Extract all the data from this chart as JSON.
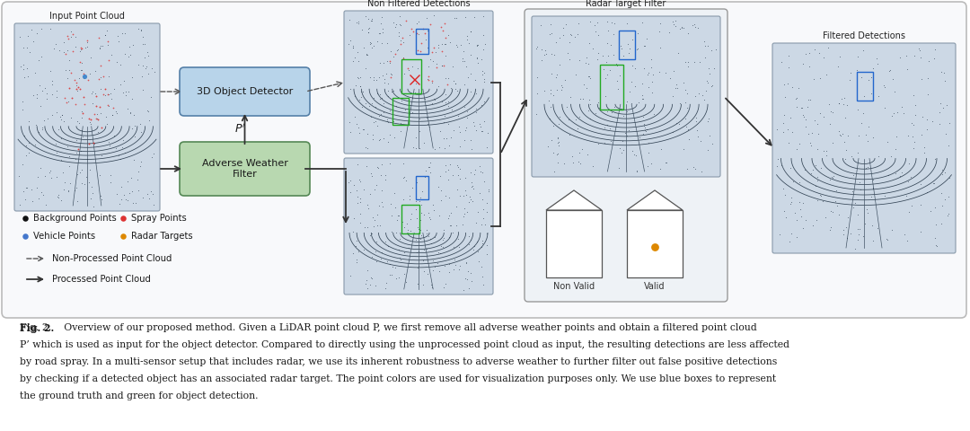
{
  "bg_color": "#ffffff",
  "diagram_bg": "#f8f9fb",
  "diagram_border": "#bbbbbb",
  "lidar_bg": "#ccd8e5",
  "lidar_border": "#8899aa",
  "blue_box_color": "#b8d4ea",
  "blue_box_border": "#5580a8",
  "green_box_color": "#b8d8b0",
  "green_box_border": "#558855",
  "rtf_bg": "#eef2f6",
  "rtf_border": "#999999",
  "legend_items": [
    {
      "label": "Background Points",
      "color": "#111111"
    },
    {
      "label": "Spray Points",
      "color": "#dd3333"
    },
    {
      "label": "Vehicle Points",
      "color": "#4477cc"
    },
    {
      "label": "Radar Targets",
      "color": "#dd8800"
    }
  ],
  "arrow_legend": [
    "Non-Processed Point Cloud",
    "Processed Point Cloud"
  ],
  "panel_titles": [
    "Input Point Cloud",
    "Non Filtered Detections",
    "Radar Target Filter",
    "Filtered Detections"
  ],
  "box_titles": [
    "3D Object Detector",
    "Adverse Weather\nFilter"
  ],
  "non_valid": "Non Valid",
  "valid": "Valid",
  "caption_line1": "Fig. 2.    Overview of our proposed method. Given a LiDAR point cloud P, we first remove all adverse weather points and obtain a filtered point cloud",
  "caption_line2": "P’ which is used as input for the object detector. Compared to directly using the unprocessed point cloud as input, the resulting detections are less affected",
  "caption_line3": "by road spray. In a multi-sensor setup that includes radar, we use its inherent robustness to adverse weather to further filter out false positive detections",
  "caption_line4": "by checking if a detected object has an associated radar target. The point colors are used for visualization purposes only. We use blue boxes to represent",
  "caption_line5": "the ground truth and green for object detection."
}
